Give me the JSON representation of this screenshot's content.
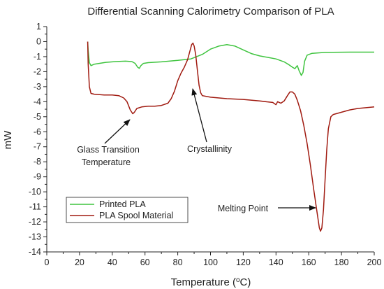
{
  "chart_data": {
    "type": "line",
    "title": "Differential Scanning Calorimetry Comparison of PLA",
    "xlabel": "Temperature (°C)",
    "xlabel_parts": {
      "main": "Temperature (",
      "sup": "o",
      "rest": "C)"
    },
    "ylabel": "mW",
    "xlim": [
      0,
      200
    ],
    "ylim": [
      -14,
      1
    ],
    "xticks": [
      0,
      20,
      40,
      60,
      80,
      100,
      120,
      140,
      160,
      180,
      200
    ],
    "yticks": [
      1,
      0,
      -1,
      -2,
      -3,
      -4,
      -5,
      -6,
      -7,
      -8,
      -9,
      -10,
      -11,
      -12,
      -13,
      -14
    ],
    "grid": false,
    "legend_position": "bottom-left",
    "series": [
      {
        "name": "Printed PLA",
        "color": "#3fc43f",
        "points": [
          [
            25,
            0
          ],
          [
            25.3,
            -0.6
          ],
          [
            26,
            -1.4
          ],
          [
            27,
            -1.6
          ],
          [
            29,
            -1.5
          ],
          [
            32,
            -1.45
          ],
          [
            36,
            -1.38
          ],
          [
            42,
            -1.33
          ],
          [
            48,
            -1.3
          ],
          [
            52,
            -1.33
          ],
          [
            54,
            -1.45
          ],
          [
            55.5,
            -1.7
          ],
          [
            56.5,
            -1.78
          ],
          [
            57.5,
            -1.6
          ],
          [
            59,
            -1.45
          ],
          [
            62,
            -1.4
          ],
          [
            70,
            -1.35
          ],
          [
            80,
            -1.25
          ],
          [
            88,
            -1.15
          ],
          [
            95,
            -0.85
          ],
          [
            100,
            -0.5
          ],
          [
            105,
            -0.3
          ],
          [
            110,
            -0.2
          ],
          [
            115,
            -0.3
          ],
          [
            120,
            -0.55
          ],
          [
            125,
            -0.8
          ],
          [
            130,
            -0.95
          ],
          [
            135,
            -1.05
          ],
          [
            140,
            -1.15
          ],
          [
            145,
            -1.35
          ],
          [
            148,
            -1.55
          ],
          [
            150,
            -1.7
          ],
          [
            151.5,
            -1.8
          ],
          [
            153,
            -1.6
          ],
          [
            154,
            -1.9
          ],
          [
            155.5,
            -2.25
          ],
          [
            156.5,
            -2.05
          ],
          [
            157.5,
            -1.3
          ],
          [
            159,
            -0.9
          ],
          [
            162,
            -0.78
          ],
          [
            170,
            -0.72
          ],
          [
            185,
            -0.7
          ],
          [
            200,
            -0.7
          ]
        ]
      },
      {
        "name": "PLA Spool Material",
        "color": "#a01a10",
        "points": [
          [
            25,
            0
          ],
          [
            25.3,
            -1.5
          ],
          [
            26,
            -3.0
          ],
          [
            27,
            -3.45
          ],
          [
            29,
            -3.5
          ],
          [
            35,
            -3.55
          ],
          [
            40,
            -3.55
          ],
          [
            44,
            -3.6
          ],
          [
            47,
            -3.75
          ],
          [
            49,
            -4.0
          ],
          [
            51,
            -4.55
          ],
          [
            52.5,
            -4.8
          ],
          [
            53.5,
            -4.7
          ],
          [
            55,
            -4.45
          ],
          [
            58,
            -4.35
          ],
          [
            62,
            -4.3
          ],
          [
            66,
            -4.3
          ],
          [
            70,
            -4.25
          ],
          [
            74,
            -4.1
          ],
          [
            76,
            -3.8
          ],
          [
            78,
            -3.3
          ],
          [
            80,
            -2.6
          ],
          [
            82,
            -2.1
          ],
          [
            84,
            -1.7
          ],
          [
            86,
            -1.2
          ],
          [
            87.5,
            -0.6
          ],
          [
            88.5,
            -0.2
          ],
          [
            89.3,
            -0.1
          ],
          [
            90,
            -0.3
          ],
          [
            91,
            -0.9
          ],
          [
            92,
            -1.9
          ],
          [
            93,
            -2.9
          ],
          [
            94,
            -3.4
          ],
          [
            95,
            -3.6
          ],
          [
            100,
            -3.7
          ],
          [
            110,
            -3.8
          ],
          [
            120,
            -3.85
          ],
          [
            130,
            -3.95
          ],
          [
            138,
            -4.05
          ],
          [
            140,
            -4.2
          ],
          [
            141,
            -4.0
          ],
          [
            143,
            -4.1
          ],
          [
            145,
            -3.95
          ],
          [
            147,
            -3.6
          ],
          [
            148.5,
            -3.35
          ],
          [
            150,
            -3.35
          ],
          [
            151.5,
            -3.5
          ],
          [
            153,
            -3.9
          ],
          [
            155,
            -4.6
          ],
          [
            157,
            -5.6
          ],
          [
            159,
            -6.8
          ],
          [
            161,
            -8.2
          ],
          [
            163,
            -9.8
          ],
          [
            165,
            -11.3
          ],
          [
            166.5,
            -12.4
          ],
          [
            167.2,
            -12.62
          ],
          [
            168,
            -12.4
          ],
          [
            169,
            -11.2
          ],
          [
            170,
            -9.2
          ],
          [
            171,
            -7.2
          ],
          [
            172,
            -5.8
          ],
          [
            173.5,
            -5.0
          ],
          [
            175,
            -4.85
          ],
          [
            180,
            -4.7
          ],
          [
            185,
            -4.55
          ],
          [
            190,
            -4.45
          ],
          [
            195,
            -4.4
          ],
          [
            200,
            -4.35
          ]
        ]
      }
    ],
    "annotations": [
      {
        "id": "glass",
        "lines": [
          "Glass Transition",
          "Temperature"
        ],
        "target": [
          51.5,
          -4.8
        ]
      },
      {
        "id": "cryst",
        "lines": [
          "Crystallinity"
        ],
        "target": [
          89,
          -1.5
        ]
      },
      {
        "id": "melt",
        "lines": [
          "Melting Point"
        ],
        "target": [
          166,
          -10.9
        ]
      }
    ]
  }
}
